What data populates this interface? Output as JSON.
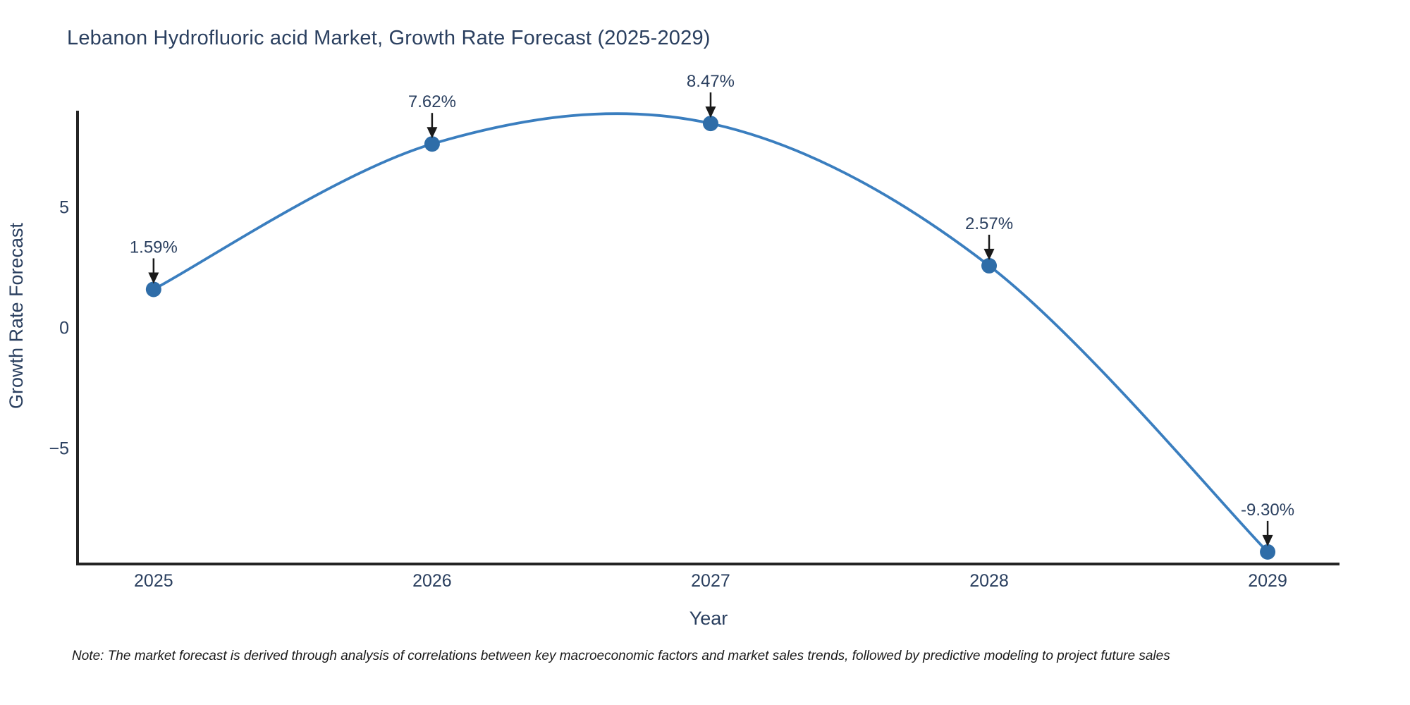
{
  "page": {
    "background": "#ffffff"
  },
  "chart_data": {
    "type": "line",
    "title": "Lebanon Hydrofluoric acid Market, Growth Rate Forecast (2025-2029)",
    "x": [
      2025,
      2026,
      2027,
      2028,
      2029
    ],
    "y": [
      1.59,
      7.62,
      8.47,
      2.57,
      -9.3
    ],
    "point_labels": [
      "1.59%",
      "7.62%",
      "8.47%",
      "2.57%",
      "-9.30%"
    ],
    "xlabel": "Year",
    "ylabel": "Growth Rate Forecast",
    "xtick_labels": [
      "2025",
      "2026",
      "2027",
      "2028",
      "2029"
    ],
    "ytick_values": [
      5,
      0,
      -5
    ],
    "ytick_labels": [
      "5",
      "0",
      "−5"
    ],
    "xlim": [
      2024.727,
      2029.258
    ],
    "ylim": [
      -9.8,
      9.0
    ],
    "line_shape": "spline",
    "grid": false,
    "legend": false,
    "colors": {
      "line": "#3a7ebf",
      "marker": "#2f6da8",
      "axis": "#242424",
      "text": "#2a3f5f",
      "arrow": "#1a1a1a"
    }
  },
  "note": {
    "text": "Note: The market forecast is derived through analysis of correlations between key macroeconomic factors and market sales trends, followed by predictive modeling to project future sales"
  }
}
